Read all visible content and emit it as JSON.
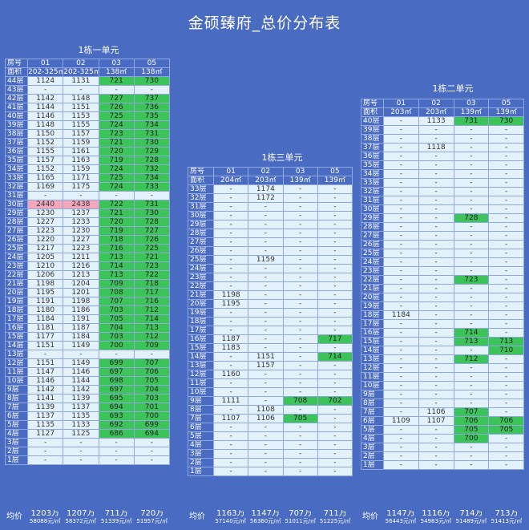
{
  "title": "金硕臻府_总价分布表",
  "labels": {
    "room": "房号",
    "area": "面积",
    "avg": "均价"
  },
  "buildings": [
    {
      "name": "1栋一单元",
      "rooms": [
        "01",
        "02",
        "03",
        "05"
      ],
      "areas": [
        "202-325㎡",
        "202-325㎡",
        "138㎡",
        "138㎡"
      ],
      "rows": [
        {
          "floor": "44层",
          "cells": [
            "1124",
            "1131",
            "721",
            "730"
          ]
        },
        {
          "floor": "43层",
          "cells": [
            "-",
            "-",
            "-",
            "-"
          ]
        },
        {
          "floor": "42层",
          "cells": [
            "1142",
            "1148",
            "727",
            "737"
          ]
        },
        {
          "floor": "41层",
          "cells": [
            "1144",
            "1151",
            "726",
            "736"
          ]
        },
        {
          "floor": "40层",
          "cells": [
            "1146",
            "1153",
            "725",
            "735"
          ]
        },
        {
          "floor": "39层",
          "cells": [
            "1148",
            "1155",
            "724",
            "734"
          ]
        },
        {
          "floor": "38层",
          "cells": [
            "1150",
            "1157",
            "723",
            "731"
          ]
        },
        {
          "floor": "37层",
          "cells": [
            "1152",
            "1159",
            "721",
            "730"
          ]
        },
        {
          "floor": "36层",
          "cells": [
            "1155",
            "1161",
            "720",
            "729"
          ]
        },
        {
          "floor": "35层",
          "cells": [
            "1157",
            "1163",
            "719",
            "728"
          ]
        },
        {
          "floor": "34层",
          "cells": [
            "1152",
            "1159",
            "724",
            "732"
          ]
        },
        {
          "floor": "33层",
          "cells": [
            "1165",
            "1171",
            "725",
            "734"
          ]
        },
        {
          "floor": "32层",
          "cells": [
            "1169",
            "1175",
            "724",
            "733"
          ]
        },
        {
          "floor": "31层",
          "cells": [
            "-",
            "-",
            "-",
            "-"
          ]
        },
        {
          "floor": "30层",
          "cells": [
            "2440",
            "2438",
            "722",
            "731"
          ]
        },
        {
          "floor": "29层",
          "cells": [
            "1230",
            "1237",
            "721",
            "730"
          ]
        },
        {
          "floor": "28层",
          "cells": [
            "1227",
            "1233",
            "720",
            "728"
          ]
        },
        {
          "floor": "27层",
          "cells": [
            "1223",
            "1230",
            "719",
            "727"
          ]
        },
        {
          "floor": "26层",
          "cells": [
            "1220",
            "1227",
            "718",
            "726"
          ]
        },
        {
          "floor": "25层",
          "cells": [
            "1217",
            "1223",
            "716",
            "725"
          ]
        },
        {
          "floor": "24层",
          "cells": [
            "1205",
            "1211",
            "713",
            "721"
          ]
        },
        {
          "floor": "23层",
          "cells": [
            "1210",
            "1216",
            "714",
            "723"
          ]
        },
        {
          "floor": "22层",
          "cells": [
            "1206",
            "1213",
            "713",
            "722"
          ]
        },
        {
          "floor": "21层",
          "cells": [
            "1198",
            "1204",
            "709",
            "718"
          ]
        },
        {
          "floor": "20层",
          "cells": [
            "1195",
            "1201",
            "708",
            "717"
          ]
        },
        {
          "floor": "19层",
          "cells": [
            "1191",
            "1198",
            "707",
            "716"
          ]
        },
        {
          "floor": "18层",
          "cells": [
            "1180",
            "1186",
            "703",
            "712"
          ]
        },
        {
          "floor": "17层",
          "cells": [
            "1184",
            "1191",
            "705",
            "714"
          ]
        },
        {
          "floor": "16层",
          "cells": [
            "1181",
            "1187",
            "704",
            "713"
          ]
        },
        {
          "floor": "15层",
          "cells": [
            "1177",
            "1184",
            "703",
            "712"
          ]
        },
        {
          "floor": "14层",
          "cells": [
            "1151",
            "1149",
            "700",
            "709"
          ]
        },
        {
          "floor": "13层",
          "cells": [
            "-",
            "-",
            "-",
            "-"
          ]
        },
        {
          "floor": "12层",
          "cells": [
            "1151",
            "1149",
            "699",
            "707"
          ]
        },
        {
          "floor": "11层",
          "cells": [
            "1147",
            "1146",
            "697",
            "706"
          ]
        },
        {
          "floor": "10层",
          "cells": [
            "1146",
            "1144",
            "698",
            "705"
          ]
        },
        {
          "floor": "9层",
          "cells": [
            "1142",
            "1142",
            "697",
            "704"
          ]
        },
        {
          "floor": "8层",
          "cells": [
            "1141",
            "1139",
            "695",
            "703"
          ]
        },
        {
          "floor": "7层",
          "cells": [
            "1139",
            "1137",
            "694",
            "701"
          ]
        },
        {
          "floor": "6层",
          "cells": [
            "1137",
            "1135",
            "693",
            "700"
          ]
        },
        {
          "floor": "5层",
          "cells": [
            "1135",
            "1133",
            "692",
            "699"
          ]
        },
        {
          "floor": "4层",
          "cells": [
            "1127",
            "1125",
            "686",
            "694"
          ]
        },
        {
          "floor": "3层",
          "cells": [
            "-",
            "-",
            "-",
            "-"
          ]
        },
        {
          "floor": "2层",
          "cells": [
            "-",
            "-",
            "-",
            "-"
          ]
        },
        {
          "floor": "1层",
          "cells": [
            "-",
            "-",
            "-",
            "-"
          ]
        }
      ],
      "avg_price": [
        "1203万",
        "1207万",
        "711万",
        "720万"
      ],
      "avg_unit": [
        "58088元/㎡",
        "58372元/㎡",
        "51339元/㎡",
        "51957元/㎡"
      ]
    },
    {
      "name": "1栋三单元",
      "rooms": [
        "01",
        "02",
        "03",
        "05"
      ],
      "areas": [
        "204㎡",
        "203㎡",
        "139㎡",
        "139㎡"
      ],
      "rows": [
        {
          "floor": "33层",
          "cells": [
            "-",
            "1174",
            "-",
            "-"
          ]
        },
        {
          "floor": "32层",
          "cells": [
            "-",
            "1172",
            "-",
            "-"
          ]
        },
        {
          "floor": "31层",
          "cells": [
            "-",
            "-",
            "-",
            "-"
          ]
        },
        {
          "floor": "30层",
          "cells": [
            "-",
            "-",
            "-",
            "-"
          ]
        },
        {
          "floor": "29层",
          "cells": [
            "-",
            "-",
            "-",
            "-"
          ]
        },
        {
          "floor": "28层",
          "cells": [
            "-",
            "-",
            "-",
            "-"
          ]
        },
        {
          "floor": "27层",
          "cells": [
            "-",
            "-",
            "-",
            "-"
          ]
        },
        {
          "floor": "26层",
          "cells": [
            "-",
            "-",
            "-",
            "-"
          ]
        },
        {
          "floor": "25层",
          "cells": [
            "-",
            "1159",
            "-",
            "-"
          ]
        },
        {
          "floor": "24层",
          "cells": [
            "-",
            "-",
            "-",
            "-"
          ]
        },
        {
          "floor": "23层",
          "cells": [
            "-",
            "-",
            "-",
            "-"
          ]
        },
        {
          "floor": "22层",
          "cells": [
            "-",
            "-",
            "-",
            "-"
          ]
        },
        {
          "floor": "21层",
          "cells": [
            "1198",
            "-",
            "-",
            "-"
          ]
        },
        {
          "floor": "20层",
          "cells": [
            "1195",
            "-",
            "-",
            "-"
          ]
        },
        {
          "floor": "19层",
          "cells": [
            "-",
            "-",
            "-",
            "-"
          ]
        },
        {
          "floor": "18层",
          "cells": [
            "-",
            "-",
            "-",
            "-"
          ]
        },
        {
          "floor": "17层",
          "cells": [
            "-",
            "-",
            "-",
            "-"
          ]
        },
        {
          "floor": "16层",
          "cells": [
            "1187",
            "-",
            "-",
            "717"
          ]
        },
        {
          "floor": "15层",
          "cells": [
            "1183",
            "-",
            "-",
            "-"
          ]
        },
        {
          "floor": "14层",
          "cells": [
            "-",
            "1151",
            "-",
            "714"
          ]
        },
        {
          "floor": "13层",
          "cells": [
            "-",
            "1157",
            "-",
            "-"
          ]
        },
        {
          "floor": "12层",
          "cells": [
            "1160",
            "-",
            "-",
            "-"
          ]
        },
        {
          "floor": "11层",
          "cells": [
            "-",
            "-",
            "-",
            "-"
          ]
        },
        {
          "floor": "10层",
          "cells": [
            "-",
            "-",
            "-",
            "-"
          ]
        },
        {
          "floor": "9层",
          "cells": [
            "1111",
            "-",
            "708",
            "702"
          ]
        },
        {
          "floor": "8层",
          "cells": [
            "-",
            "1108",
            "-",
            "-"
          ]
        },
        {
          "floor": "7层",
          "cells": [
            "1107",
            "1106",
            "705",
            "-"
          ]
        },
        {
          "floor": "6层",
          "cells": [
            "-",
            "-",
            "-",
            "-"
          ]
        },
        {
          "floor": "5层",
          "cells": [
            "-",
            "-",
            "-",
            "-"
          ]
        },
        {
          "floor": "4层",
          "cells": [
            "-",
            "-",
            "-",
            "-"
          ]
        },
        {
          "floor": "3层",
          "cells": [
            "-",
            "-",
            "-",
            "-"
          ]
        },
        {
          "floor": "2层",
          "cells": [
            "-",
            "-",
            "-",
            "-"
          ]
        },
        {
          "floor": "1层",
          "cells": [
            "-",
            "-",
            "-",
            "-"
          ]
        }
      ],
      "avg_price": [
        "1163万",
        "1147万",
        "707万",
        "711万"
      ],
      "avg_unit": [
        "57140元/㎡",
        "56360元/㎡",
        "51011元/㎡",
        "51225元/㎡"
      ]
    },
    {
      "name": "1栋二单元",
      "rooms": [
        "01",
        "02",
        "03",
        "05"
      ],
      "areas": [
        "203㎡",
        "203㎡",
        "139㎡",
        "139㎡"
      ],
      "rows": [
        {
          "floor": "40层",
          "cells": [
            "-",
            "1133",
            "731",
            "730"
          ]
        },
        {
          "floor": "39层",
          "cells": [
            "-",
            "-",
            "-",
            "-"
          ]
        },
        {
          "floor": "38层",
          "cells": [
            "-",
            "-",
            "-",
            "-"
          ]
        },
        {
          "floor": "37层",
          "cells": [
            "-",
            "1118",
            "-",
            "-"
          ]
        },
        {
          "floor": "36层",
          "cells": [
            "-",
            "-",
            "-",
            "-"
          ]
        },
        {
          "floor": "35层",
          "cells": [
            "-",
            "-",
            "-",
            "-"
          ]
        },
        {
          "floor": "34层",
          "cells": [
            "-",
            "-",
            "-",
            "-"
          ]
        },
        {
          "floor": "33层",
          "cells": [
            "-",
            "-",
            "-",
            "-"
          ]
        },
        {
          "floor": "32层",
          "cells": [
            "-",
            "-",
            "-",
            "-"
          ]
        },
        {
          "floor": "31层",
          "cells": [
            "-",
            "-",
            "-",
            "-"
          ]
        },
        {
          "floor": "30层",
          "cells": [
            "-",
            "-",
            "-",
            "-"
          ]
        },
        {
          "floor": "29层",
          "cells": [
            "-",
            "-",
            "728",
            "-"
          ]
        },
        {
          "floor": "28层",
          "cells": [
            "-",
            "-",
            "-",
            "-"
          ]
        },
        {
          "floor": "27层",
          "cells": [
            "-",
            "-",
            "-",
            "-"
          ]
        },
        {
          "floor": "26层",
          "cells": [
            "-",
            "-",
            "-",
            "-"
          ]
        },
        {
          "floor": "25层",
          "cells": [
            "-",
            "-",
            "-",
            "-"
          ]
        },
        {
          "floor": "24层",
          "cells": [
            "-",
            "-",
            "-",
            "-"
          ]
        },
        {
          "floor": "23层",
          "cells": [
            "-",
            "-",
            "-",
            "-"
          ]
        },
        {
          "floor": "22层",
          "cells": [
            "-",
            "-",
            "723",
            "-"
          ]
        },
        {
          "floor": "21层",
          "cells": [
            "-",
            "-",
            "-",
            "-"
          ]
        },
        {
          "floor": "20层",
          "cells": [
            "-",
            "-",
            "-",
            "-"
          ]
        },
        {
          "floor": "19层",
          "cells": [
            "-",
            "-",
            "-",
            "-"
          ]
        },
        {
          "floor": "18层",
          "cells": [
            "1184",
            "-",
            "-",
            "-"
          ]
        },
        {
          "floor": "17层",
          "cells": [
            "-",
            "-",
            "-",
            "-"
          ]
        },
        {
          "floor": "16层",
          "cells": [
            "-",
            "-",
            "714",
            "-"
          ]
        },
        {
          "floor": "15层",
          "cells": [
            "-",
            "-",
            "713",
            "713"
          ]
        },
        {
          "floor": "14层",
          "cells": [
            "-",
            "-",
            "-",
            "710"
          ]
        },
        {
          "floor": "13层",
          "cells": [
            "-",
            "-",
            "712",
            "-"
          ]
        },
        {
          "floor": "12层",
          "cells": [
            "-",
            "-",
            "-",
            "-"
          ]
        },
        {
          "floor": "11层",
          "cells": [
            "-",
            "-",
            "-",
            "-"
          ]
        },
        {
          "floor": "10层",
          "cells": [
            "-",
            "-",
            "-",
            "-"
          ]
        },
        {
          "floor": "9层",
          "cells": [
            "-",
            "-",
            "-",
            "-"
          ]
        },
        {
          "floor": "8层",
          "cells": [
            "-",
            "-",
            "-",
            "-"
          ]
        },
        {
          "floor": "7层",
          "cells": [
            "-",
            "1106",
            "707",
            "-"
          ]
        },
        {
          "floor": "6层",
          "cells": [
            "1109",
            "1107",
            "706",
            "706"
          ]
        },
        {
          "floor": "5层",
          "cells": [
            "-",
            "-",
            "705",
            "705"
          ]
        },
        {
          "floor": "4层",
          "cells": [
            "-",
            "-",
            "700",
            "-"
          ]
        },
        {
          "floor": "3层",
          "cells": [
            "-",
            "-",
            "-",
            "-"
          ]
        },
        {
          "floor": "2层",
          "cells": [
            "-",
            "-",
            "-",
            "-"
          ]
        },
        {
          "floor": "1层",
          "cells": [
            "-",
            "-",
            "-",
            "-"
          ]
        }
      ],
      "avg_price": [
        "1147万",
        "1116万",
        "714万",
        "713万"
      ],
      "avg_unit": [
        "56443元/㎡",
        "54983元/㎡",
        "51489元/㎡",
        "51413元/㎡"
      ]
    }
  ]
}
